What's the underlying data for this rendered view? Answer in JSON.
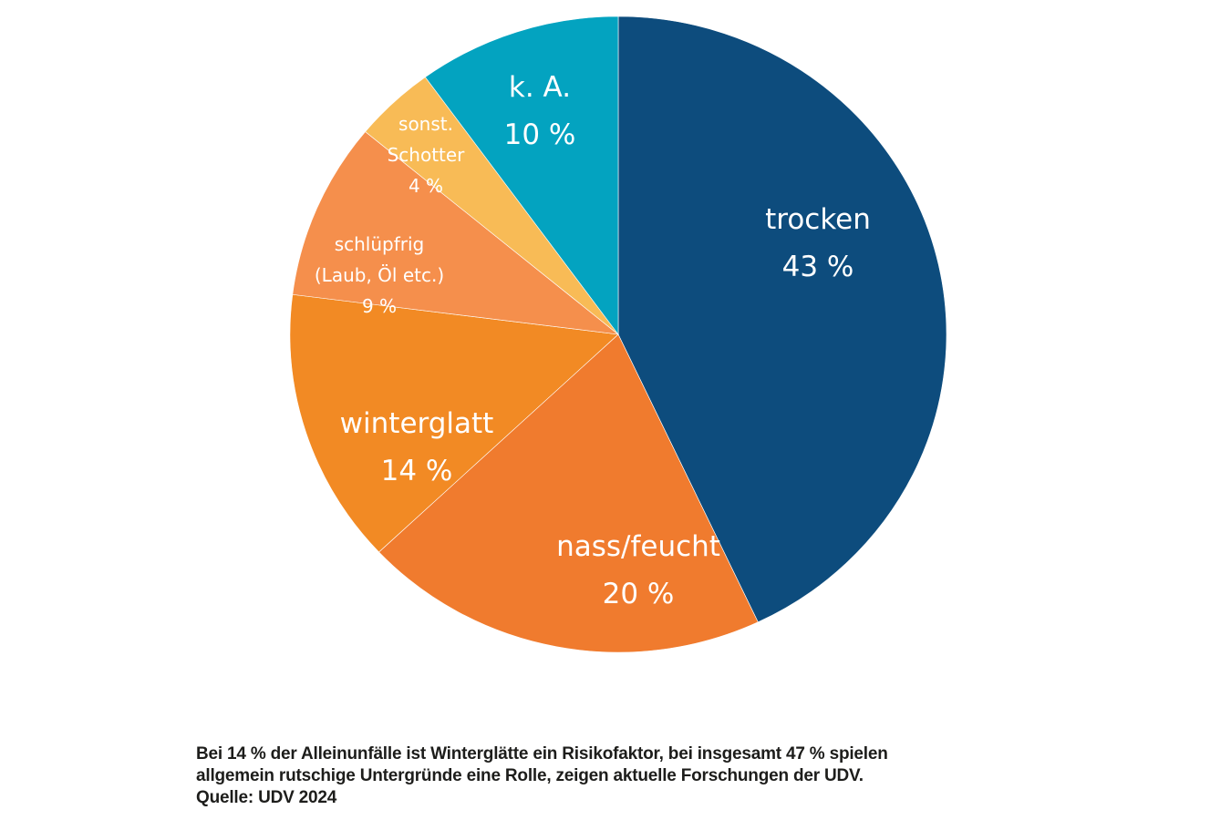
{
  "chart_data": {
    "type": "pie",
    "start": "top",
    "direction": "clockwise",
    "slices": [
      {
        "label": "trocken",
        "value": 43,
        "value_label": "43 %",
        "color": "#0d4c7d"
      },
      {
        "label": "nass/feucht",
        "value": 20,
        "value_label": "20 %",
        "color": "#f07b2e"
      },
      {
        "label": "winterglatt",
        "value": 14,
        "value_label": "14 %",
        "color": "#f28a24"
      },
      {
        "label": "schlüpfrig",
        "label2": "(Laub, Öl etc.)",
        "value": 9,
        "value_label": "9 %",
        "color": "#f58f4c"
      },
      {
        "label": "sonst.",
        "label2": "Schotter",
        "value": 4,
        "value_label": "4 %",
        "color": "#f8bb56"
      },
      {
        "label": "k. A.",
        "value": 10,
        "value_label": "10 %",
        "color": "#03a3c0"
      }
    ]
  },
  "caption": {
    "line1": "Bei 14 % der Alleinunfälle ist Winterglätte ein Risikofaktor, bei insgesamt 47 % spielen",
    "line2": "allgemein rutschige Untergründe eine Rolle, zeigen aktuelle Forschungen der UDV.",
    "source": "Quelle: UDV 2024"
  }
}
